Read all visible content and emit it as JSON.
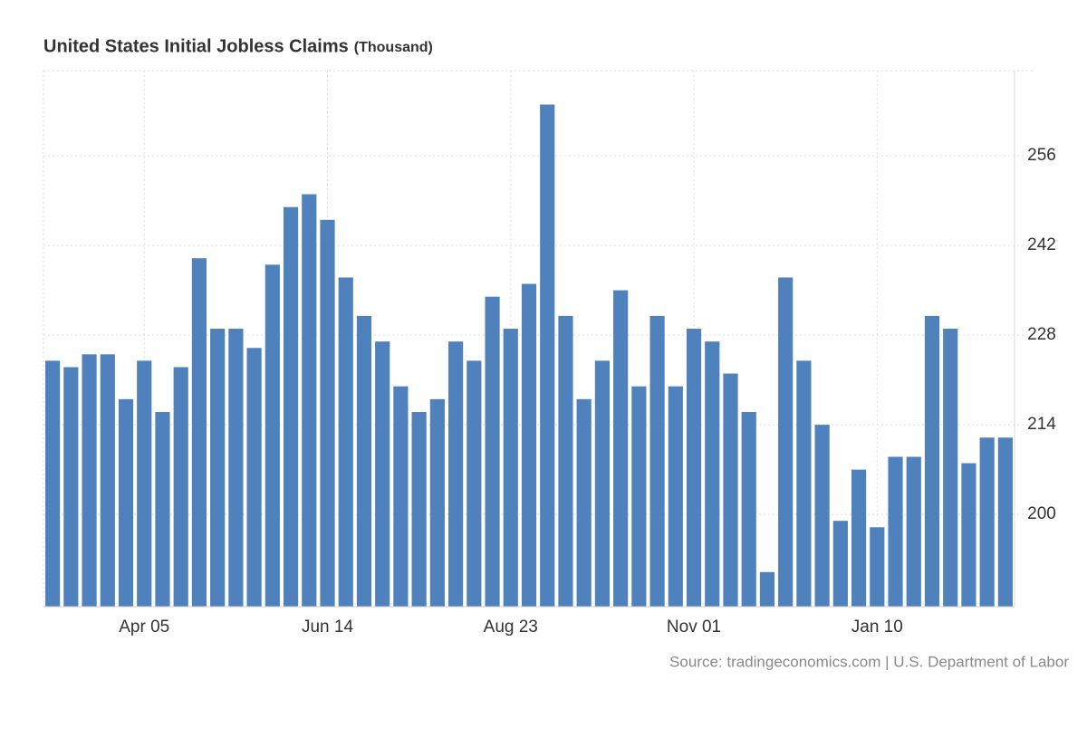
{
  "chart_data": {
    "type": "bar",
    "title": "United States Initial Jobless Claims",
    "unit": "(Thousand)",
    "source": "Source: tradingeconomics.com | U.S. Department of Labor",
    "categories": [
      null,
      null,
      null,
      null,
      null,
      "Apr 05",
      null,
      null,
      null,
      null,
      null,
      null,
      null,
      null,
      null,
      "Jun 14",
      null,
      null,
      null,
      null,
      null,
      null,
      null,
      null,
      null,
      "Aug 23",
      null,
      null,
      null,
      null,
      null,
      null,
      null,
      null,
      null,
      "Nov 01",
      null,
      null,
      null,
      null,
      null,
      null,
      null,
      null,
      null,
      "Jan 10",
      null,
      null,
      null,
      null,
      null,
      null,
      null
    ],
    "values": [
      224,
      223,
      225,
      225,
      218,
      224,
      216,
      223,
      240,
      229,
      229,
      226,
      239,
      248,
      250,
      246,
      237,
      231,
      227,
      220,
      216,
      218,
      227,
      224,
      234,
      229,
      236,
      264,
      231,
      218,
      224,
      235,
      220,
      231,
      220,
      229,
      227,
      222,
      216,
      191,
      237,
      224,
      214,
      199,
      207,
      198,
      209,
      209,
      231,
      229,
      208,
      212,
      212
    ],
    "color": "#4f81bd",
    "ylim": [
      185.6,
      269.3
    ],
    "yticks": [
      200,
      214,
      228,
      242,
      256
    ],
    "grid": true
  }
}
